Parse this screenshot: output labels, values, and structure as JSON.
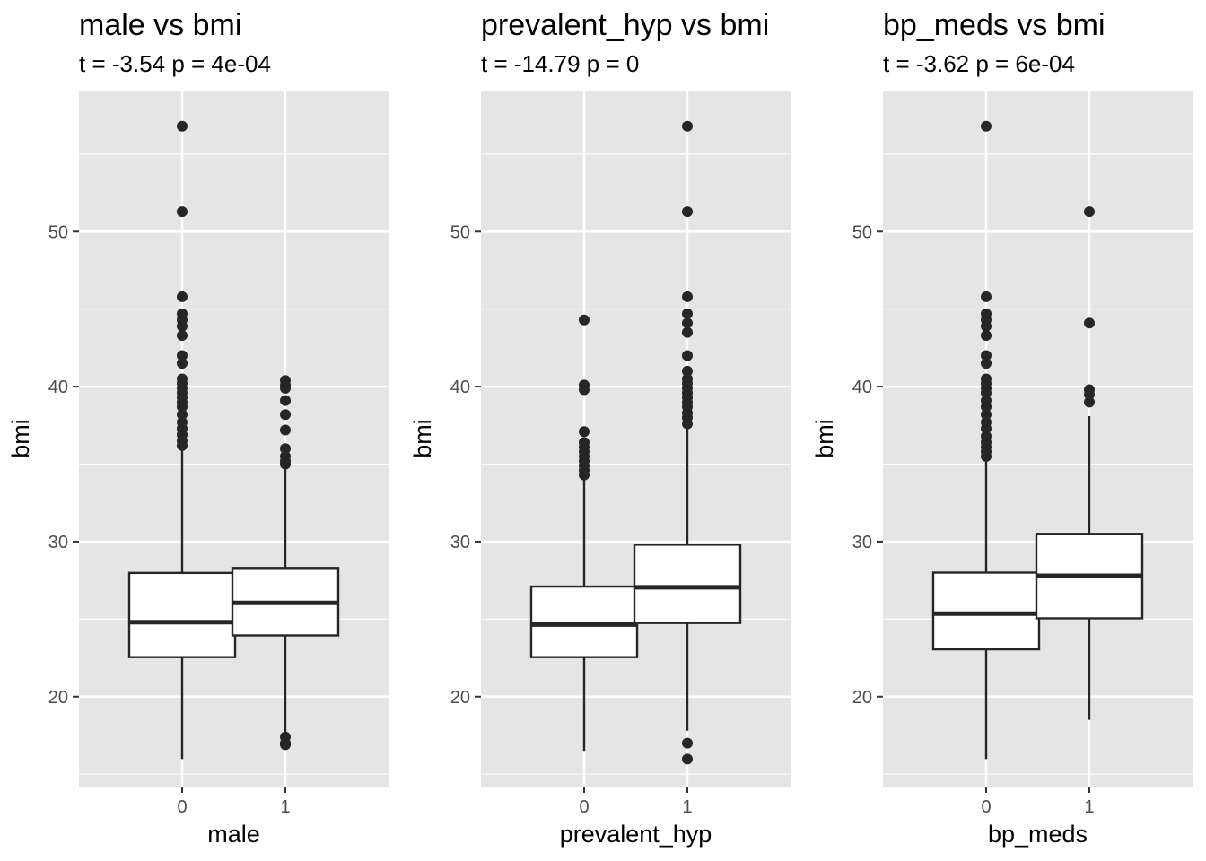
{
  "colors": {
    "panel_background": "#e5e5e5",
    "grid": "#ffffff",
    "box_fill": "#ffffff",
    "box_stroke": "#262626",
    "outlier": "#262626",
    "tick_text": "#4d4d4d"
  },
  "chart_data": [
    {
      "type": "boxplot",
      "title": "male vs bmi",
      "subtitle": "t = -3.54 p = 4e-04",
      "xlabel": "male",
      "ylabel": "bmi",
      "ylim": [
        14.2,
        59.1
      ],
      "y_ticks": [
        20,
        30,
        40,
        50
      ],
      "grid": true,
      "categories": [
        "0",
        "1"
      ],
      "boxes": [
        {
          "category": "0",
          "lower_whisker": 15.97,
          "q1": 22.55,
          "median": 24.8,
          "q3": 27.98,
          "upper_whisker": 36.05,
          "outliers": [
            56.8,
            51.28,
            45.8,
            44.7,
            44.3,
            43.9,
            43.3,
            42.0,
            41.5,
            40.5,
            40.2,
            39.9,
            39.6,
            39.3,
            39.0,
            38.7,
            38.2,
            37.7,
            37.3,
            36.9,
            36.5,
            36.2
          ]
        },
        {
          "category": "1",
          "lower_whisker": 17.6,
          "q1": 23.95,
          "median": 26.05,
          "q3": 28.3,
          "upper_whisker": 34.8,
          "outliers": [
            40.4,
            40.1,
            39.9,
            39.1,
            38.2,
            37.2,
            36.0,
            35.5,
            35.2,
            35.0,
            17.4,
            17.0,
            16.9
          ]
        }
      ]
    },
    {
      "type": "boxplot",
      "title": "prevalent_hyp vs bmi",
      "subtitle": "t = -14.79 p = 0",
      "xlabel": "prevalent_hyp",
      "ylabel": "bmi",
      "ylim": [
        14.2,
        59.1
      ],
      "y_ticks": [
        20,
        30,
        40,
        50
      ],
      "grid": true,
      "categories": [
        "0",
        "1"
      ],
      "boxes": [
        {
          "category": "0",
          "lower_whisker": 16.5,
          "q1": 22.55,
          "median": 24.65,
          "q3": 27.1,
          "upper_whisker": 34.0,
          "outliers": [
            44.3,
            40.1,
            39.8,
            37.1,
            36.4,
            36.1,
            35.8,
            35.5,
            35.2,
            34.9,
            34.6,
            34.3
          ]
        },
        {
          "category": "1",
          "lower_whisker": 17.8,
          "q1": 24.75,
          "median": 27.05,
          "q3": 29.8,
          "upper_whisker": 37.3,
          "outliers": [
            56.8,
            51.28,
            45.8,
            44.7,
            44.1,
            43.5,
            42.0,
            41.0,
            40.5,
            40.2,
            39.9,
            39.6,
            39.3,
            39.0,
            38.7,
            38.3,
            38.0,
            37.6,
            17.0,
            15.97
          ]
        }
      ]
    },
    {
      "type": "boxplot",
      "title": "bp_meds vs bmi",
      "subtitle": "t = -3.62 p = 6e-04",
      "xlabel": "bp_meds",
      "ylabel": "bmi",
      "ylim": [
        14.2,
        59.1
      ],
      "y_ticks": [
        20,
        30,
        40,
        50
      ],
      "grid": true,
      "categories": [
        "0",
        "1"
      ],
      "boxes": [
        {
          "category": "0",
          "lower_whisker": 15.97,
          "q1": 23.05,
          "median": 25.35,
          "q3": 28.0,
          "upper_whisker": 35.3,
          "outliers": [
            56.8,
            45.8,
            44.7,
            44.3,
            43.9,
            43.3,
            42.0,
            41.5,
            40.5,
            40.2,
            39.9,
            39.6,
            39.1,
            38.7,
            38.2,
            37.7,
            37.3,
            36.8,
            36.4,
            36.1,
            35.8,
            35.5
          ]
        },
        {
          "category": "1",
          "lower_whisker": 18.5,
          "q1": 25.05,
          "median": 27.8,
          "q3": 30.5,
          "upper_whisker": 38.1,
          "outliers": [
            51.28,
            44.1,
            39.8,
            39.5,
            39.0
          ]
        }
      ]
    }
  ]
}
